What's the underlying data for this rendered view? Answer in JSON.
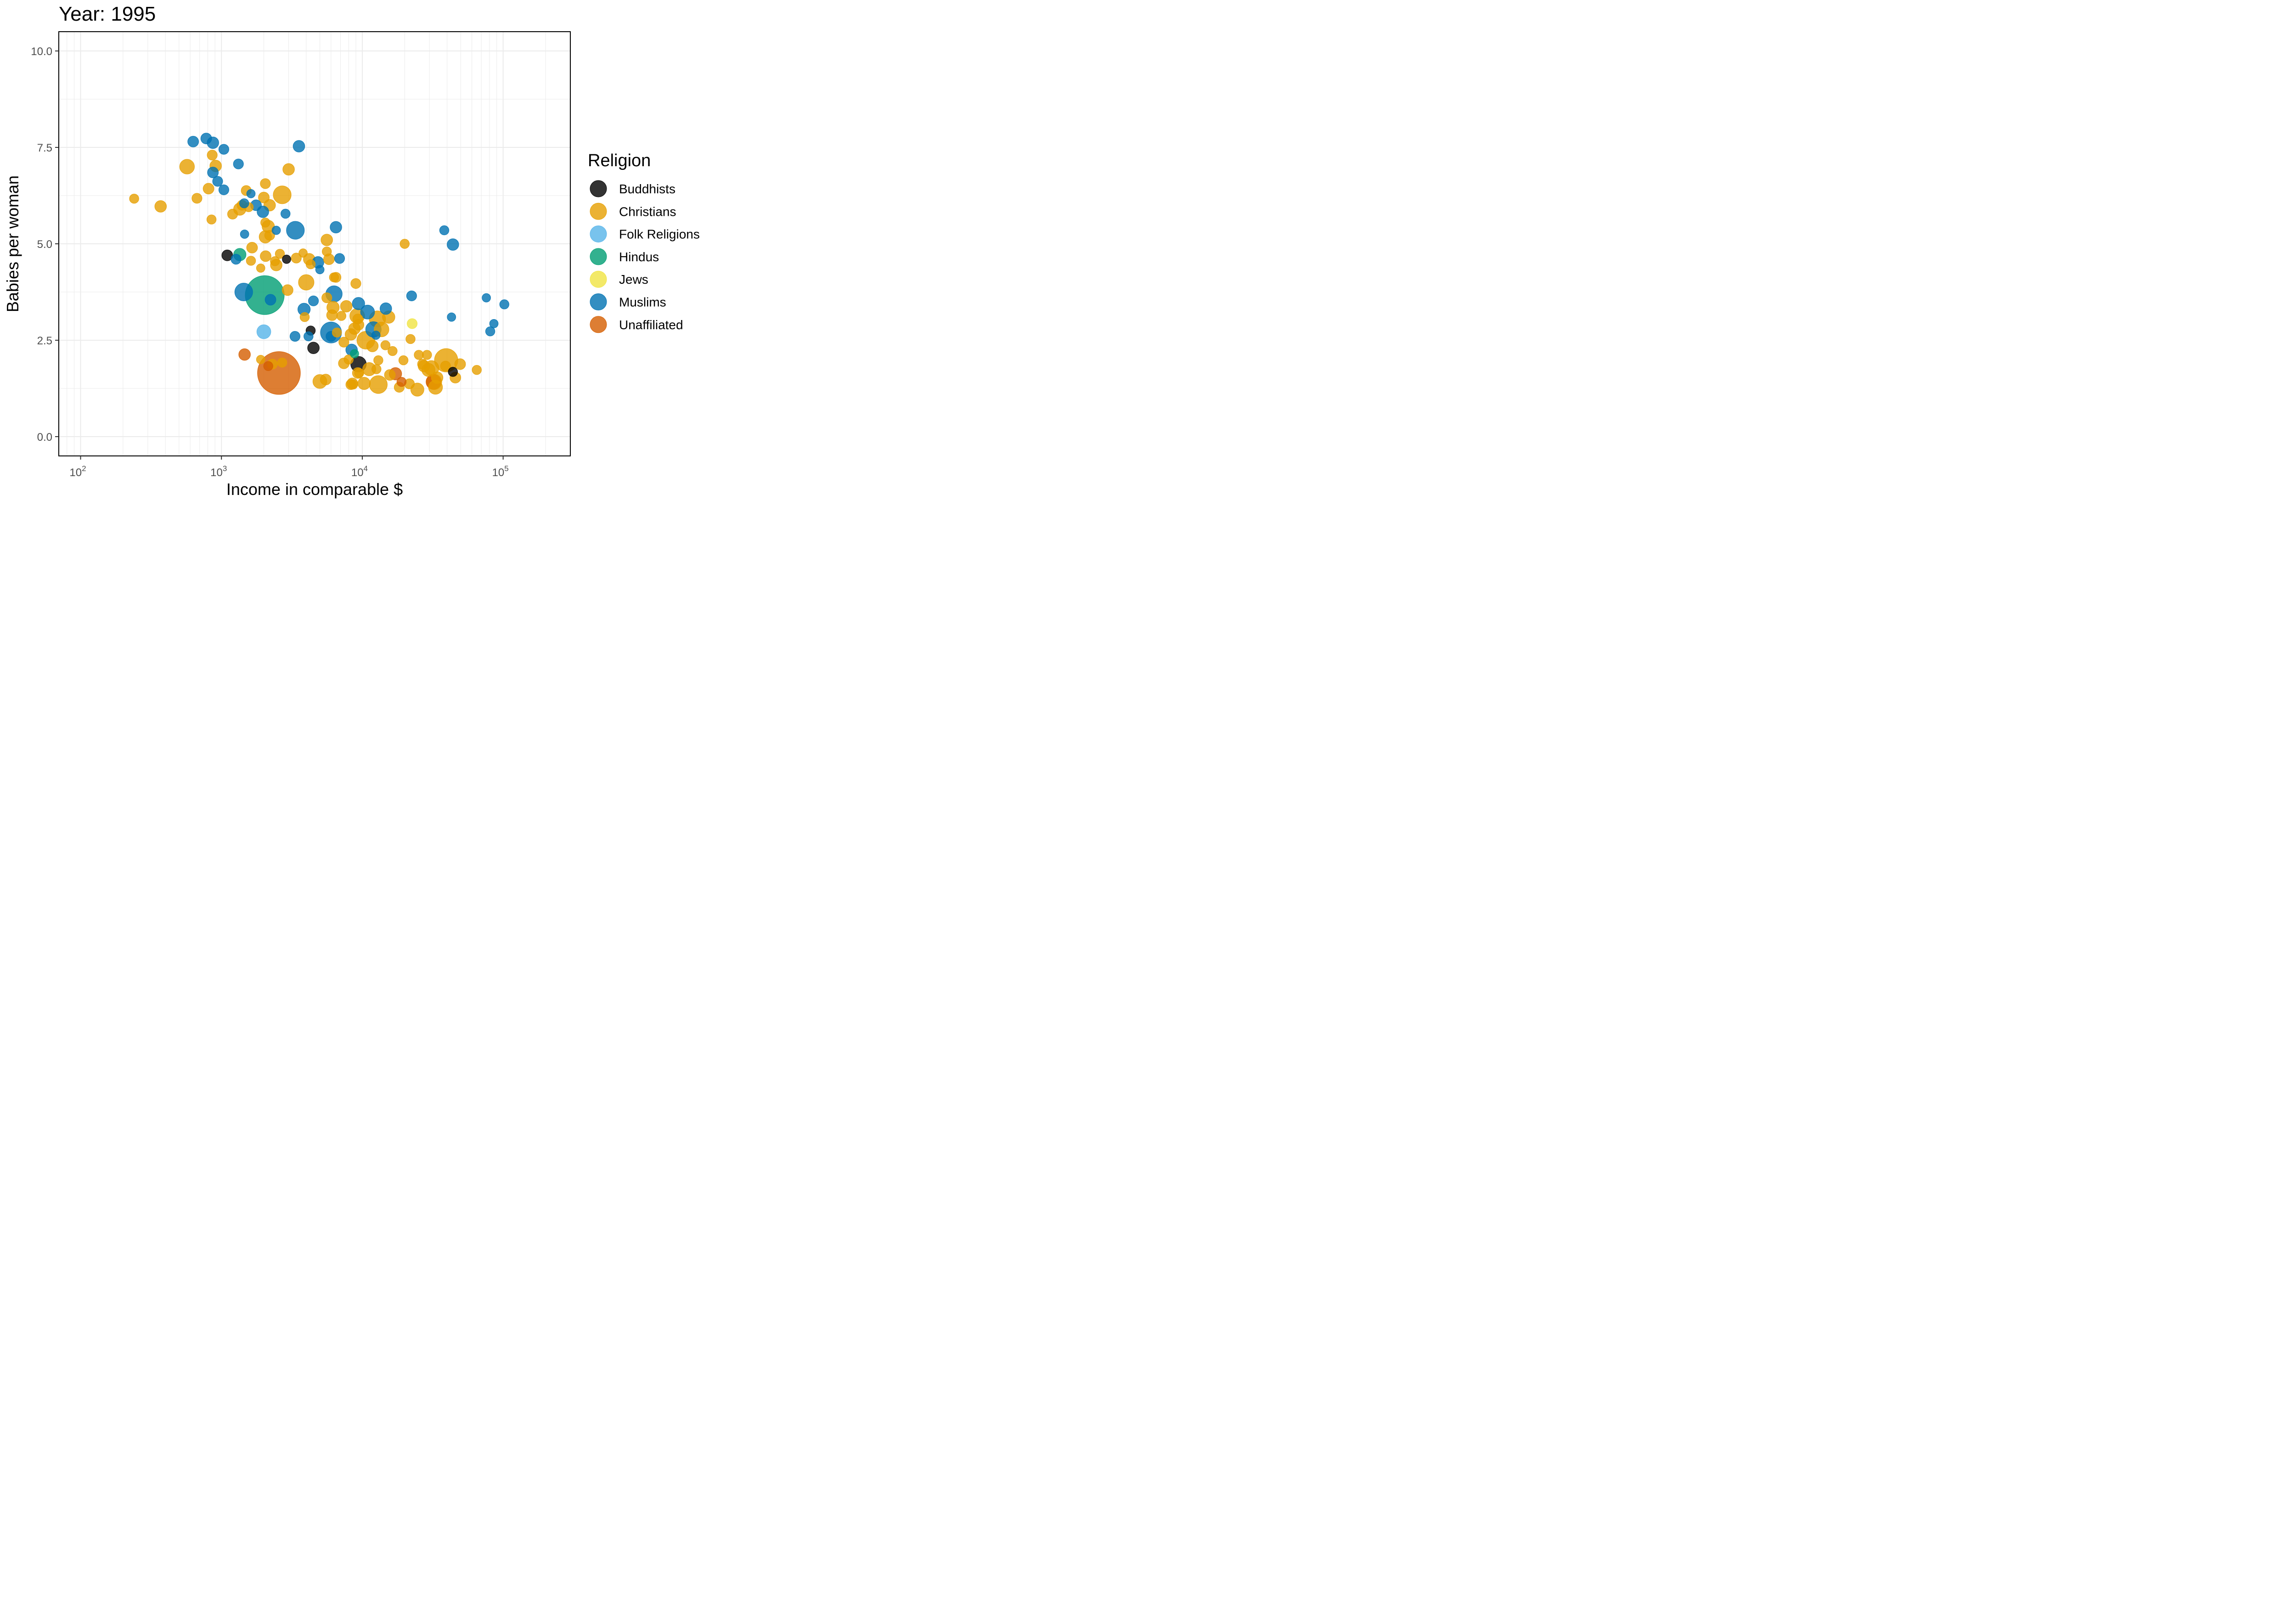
{
  "chart_data": {
    "type": "scatter",
    "title": "Year: 1995",
    "xlabel": "Income in comparable $",
    "ylabel": "Babies per woman",
    "x_scale": "log10",
    "xlim": [
      70,
      300000
    ],
    "ylim": [
      -0.5,
      10.5
    ],
    "x_ticks": [
      {
        "value": 100,
        "base": "10",
        "exp": "2"
      },
      {
        "value": 1000,
        "base": "10",
        "exp": "3"
      },
      {
        "value": 10000,
        "base": "10",
        "exp": "4"
      },
      {
        "value": 100000,
        "base": "10",
        "exp": "5"
      }
    ],
    "y_ticks": [
      {
        "value": 0,
        "label": "0.0"
      },
      {
        "value": 2.5,
        "label": "2.5"
      },
      {
        "value": 5,
        "label": "5.0"
      },
      {
        "value": 7.5,
        "label": "7.5"
      },
      {
        "value": 10,
        "label": "10.0"
      }
    ],
    "grid": true,
    "legend": {
      "title": "Religion",
      "placement": "right",
      "entries": [
        {
          "name": "Buddhists",
          "color": "#000000"
        },
        {
          "name": "Christians",
          "color": "#E69F00"
        },
        {
          "name": "Folk Religions",
          "color": "#56B4E9"
        },
        {
          "name": "Hindus",
          "color": "#009E73"
        },
        {
          "name": "Jews",
          "color": "#F0E442"
        },
        {
          "name": "Muslims",
          "color": "#0072B2"
        },
        {
          "name": "Unaffiliated",
          "color": "#D55E00"
        }
      ]
    },
    "point_size": "population (relative, unlabeled)",
    "series": [
      {
        "name": "Buddhists",
        "points": [
          [
            1100,
            4.7,
            1.4
          ],
          [
            2900,
            4.6,
            1.1
          ],
          [
            4300,
            2.75,
            1.2
          ],
          [
            4500,
            2.3,
            1.5
          ],
          [
            9400,
            1.88,
            2
          ],
          [
            44000,
            1.68,
            1.2
          ]
        ]
      },
      {
        "name": "Christians",
        "points": [
          [
            240,
            6.17,
            1.2
          ],
          [
            370,
            5.97,
            1.5
          ],
          [
            570,
            7.0,
            1.9
          ],
          [
            670,
            6.18,
            1.3
          ],
          [
            810,
            6.43,
            1.4
          ],
          [
            850,
            5.63,
            1.2
          ],
          [
            860,
            7.3,
            1.3
          ],
          [
            910,
            7.02,
            1.5
          ],
          [
            1200,
            5.77,
            1.3
          ],
          [
            1350,
            5.9,
            1.6
          ],
          [
            1400,
            6.0,
            1.3
          ],
          [
            1500,
            6.38,
            1.3
          ],
          [
            1560,
            5.95,
            1.2
          ],
          [
            1650,
            4.9,
            1.4
          ],
          [
            1620,
            4.56,
            1.2
          ],
          [
            1900,
            4.37,
            1.1
          ],
          [
            2000,
            6.2,
            1.4
          ],
          [
            2050,
            6.56,
            1.3
          ],
          [
            2050,
            5.55,
            1.2
          ],
          [
            2050,
            5.18,
            1.6
          ],
          [
            2150,
            5.45,
            1.6
          ],
          [
            2200,
            5.22,
            1.3
          ],
          [
            2200,
            6.0,
            1.5
          ],
          [
            2060,
            4.68,
            1.4
          ],
          [
            2400,
            4.55,
            1.2
          ],
          [
            2450,
            4.45,
            1.5
          ],
          [
            2600,
            4.74,
            1.2
          ],
          [
            2700,
            6.27,
            2.3
          ],
          [
            3000,
            6.93,
            1.5
          ],
          [
            2950,
            3.8,
            1.4
          ],
          [
            3400,
            4.63,
            1.3
          ],
          [
            3800,
            4.76,
            1.1
          ],
          [
            4000,
            4.0,
            2
          ],
          [
            4200,
            4.6,
            1.5
          ],
          [
            4300,
            4.47,
            1.2
          ],
          [
            3900,
            3.1,
            1.2
          ],
          [
            5600,
            5.1,
            1.5
          ],
          [
            5600,
            4.8,
            1.2
          ],
          [
            5800,
            4.6,
            1.4
          ],
          [
            5600,
            3.6,
            1.3
          ],
          [
            6200,
            3.35,
            1.6
          ],
          [
            6100,
            3.15,
            1.4
          ],
          [
            6500,
            4.13,
            1.3
          ],
          [
            6300,
            4.13,
            1.2
          ],
          [
            6600,
            2.7,
            1.2
          ],
          [
            7100,
            3.13,
            1.2
          ],
          [
            7400,
            2.45,
            1.3
          ],
          [
            7700,
            3.38,
            1.5
          ],
          [
            8000,
            2.0,
            1.2
          ],
          [
            8300,
            2.65,
            1.5
          ],
          [
            8800,
            2.8,
            1.5
          ],
          [
            9000,
            3.97,
            1.3
          ],
          [
            9200,
            3.13,
            1.9
          ],
          [
            9300,
            3.05,
            1.3
          ],
          [
            9400,
            2.9,
            1.4
          ],
          [
            9300,
            1.65,
            1.4
          ],
          [
            9500,
            1.65,
            1.2
          ],
          [
            7400,
            1.9,
            1.4
          ],
          [
            8500,
            1.38,
            1.4
          ],
          [
            8600,
            1.35,
            1.2
          ],
          [
            10300,
            1.38,
            1.6
          ],
          [
            10600,
            2.5,
            2.3
          ],
          [
            11200,
            1.75,
            1.7
          ],
          [
            11800,
            2.35,
            1.5
          ],
          [
            12600,
            1.75,
            1.2
          ],
          [
            13000,
            1.98,
            1.2
          ],
          [
            13000,
            1.35,
            2.3
          ],
          [
            12800,
            3.05,
            2.1
          ],
          [
            13700,
            2.78,
            1.9
          ],
          [
            14600,
            2.37,
            1.2
          ],
          [
            15400,
            3.1,
            1.6
          ],
          [
            15700,
            1.6,
            1.4
          ],
          [
            16400,
            2.22,
            1.2
          ],
          [
            18300,
            1.28,
            1.3
          ],
          [
            19600,
            1.98,
            1.2
          ],
          [
            20000,
            5.0,
            1.2
          ],
          [
            21600,
            1.37,
            1.3
          ],
          [
            22000,
            2.53,
            1.2
          ],
          [
            24600,
            1.22,
            1.7
          ],
          [
            25200,
            2.12,
            1.2
          ],
          [
            26800,
            1.88,
            1.3
          ],
          [
            27400,
            1.83,
            1.5
          ],
          [
            28800,
            2.12,
            1.2
          ],
          [
            29500,
            1.73,
            1.7
          ],
          [
            31000,
            1.78,
            1.9
          ],
          [
            32300,
            1.42,
            2
          ],
          [
            33100,
            1.28,
            1.8
          ],
          [
            34000,
            1.53,
            1.5
          ],
          [
            39400,
            1.98,
            3
          ],
          [
            39000,
            1.83,
            1.3
          ],
          [
            45800,
            1.53,
            1.4
          ],
          [
            49500,
            1.88,
            1.4
          ],
          [
            65000,
            1.73,
            1.2
          ],
          [
            5000,
            1.43,
            1.8
          ],
          [
            5500,
            1.48,
            1.4
          ],
          [
            8300,
            1.35,
            1.3
          ],
          [
            1900,
            2.0,
            1.1
          ],
          [
            2300,
            1.88,
            1.3
          ],
          [
            2700,
            1.92,
            1.2
          ]
        ]
      },
      {
        "name": "Folk Religions",
        "points": [
          [
            2000,
            2.72,
            1.8
          ]
        ]
      },
      {
        "name": "Hindus",
        "points": [
          [
            1350,
            4.72,
            1.6
          ],
          [
            2030,
            3.67,
            5
          ],
          [
            8800,
            2.15,
            1.1
          ]
        ]
      },
      {
        "name": "Jews",
        "points": [
          [
            22600,
            2.93,
            1.3
          ]
        ]
      },
      {
        "name": "Muslims",
        "points": [
          [
            630,
            7.65,
            1.4
          ],
          [
            780,
            7.73,
            1.4
          ],
          [
            870,
            7.62,
            1.5
          ],
          [
            1040,
            7.45,
            1.3
          ],
          [
            1320,
            7.07,
            1.3
          ],
          [
            870,
            6.85,
            1.4
          ],
          [
            940,
            6.62,
            1.3
          ],
          [
            1040,
            6.4,
            1.3
          ],
          [
            1450,
            6.05,
            1.2
          ],
          [
            1620,
            6.3,
            1.1
          ],
          [
            1760,
            6.0,
            1.4
          ],
          [
            1970,
            5.83,
            1.5
          ],
          [
            2450,
            5.35,
            1.1
          ],
          [
            2850,
            5.78,
            1.2
          ],
          [
            3350,
            5.35,
            2.3
          ],
          [
            3550,
            7.53,
            1.5
          ],
          [
            1460,
            5.25,
            1.1
          ],
          [
            1270,
            4.6,
            1.3
          ],
          [
            1440,
            3.75,
            2.3
          ],
          [
            2230,
            3.55,
            1.4
          ],
          [
            3330,
            2.6,
            1.3
          ],
          [
            3860,
            3.3,
            1.6
          ],
          [
            4150,
            2.6,
            1.2
          ],
          [
            4500,
            3.52,
            1.3
          ],
          [
            4850,
            4.52,
            1.5
          ],
          [
            5000,
            4.33,
            1.1
          ],
          [
            6000,
            2.7,
            2.7
          ],
          [
            6000,
            2.6,
            1.3
          ],
          [
            6300,
            3.7,
            2.1
          ],
          [
            6500,
            5.43,
            1.5
          ],
          [
            6900,
            4.62,
            1.3
          ],
          [
            8400,
            2.25,
            1.5
          ],
          [
            9400,
            3.45,
            1.6
          ],
          [
            10900,
            3.23,
            1.8
          ],
          [
            12000,
            2.78,
            2
          ],
          [
            12500,
            2.63,
            1.1
          ],
          [
            14700,
            3.32,
            1.5
          ],
          [
            22400,
            3.65,
            1.3
          ],
          [
            38200,
            5.35,
            1.2
          ],
          [
            43000,
            3.1,
            1.1
          ],
          [
            44000,
            4.98,
            1.5
          ],
          [
            76000,
            3.6,
            1.1
          ],
          [
            81000,
            2.73,
            1.2
          ],
          [
            86000,
            2.93,
            1.1
          ],
          [
            102000,
            3.43,
            1.2
          ]
        ]
      },
      {
        "name": "Unaffiliated",
        "points": [
          [
            1460,
            2.13,
            1.5
          ],
          [
            2150,
            1.83,
            1.2
          ],
          [
            2560,
            1.65,
            5.5
          ],
          [
            17200,
            1.63,
            1.6
          ],
          [
            19000,
            1.42,
            1.2
          ],
          [
            32000,
            1.42,
            1.9
          ]
        ]
      }
    ]
  }
}
